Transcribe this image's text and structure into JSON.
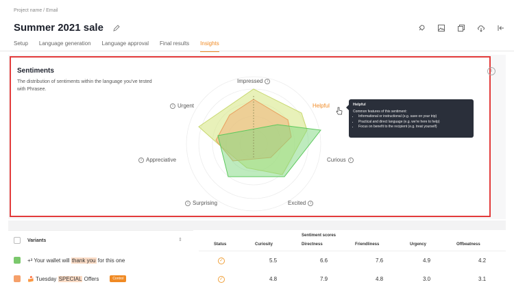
{
  "breadcrumb": "Project name / Email",
  "title": "Summer 2021 sale",
  "tabs": [
    {
      "label": "Setup",
      "active": false
    },
    {
      "label": "Language generation",
      "active": false
    },
    {
      "label": "Language approval",
      "active": false
    },
    {
      "label": "Final results",
      "active": false
    },
    {
      "label": "Insights",
      "active": true
    }
  ],
  "toolbar_icons": [
    "rocket-icon",
    "image-icon",
    "copy-icon",
    "download-icon",
    "collapse-icon"
  ],
  "sentiments": {
    "title": "Sentiments",
    "description": "The distribution of sentiments within the language you've tested with Phrasee.",
    "axes": [
      "Impressed",
      "Helpful",
      "Curious",
      "Excited",
      "Surprising",
      "Appreciative",
      "Urgent"
    ],
    "highlighted_axis": "Helpful",
    "tooltip": {
      "title": "Helpful",
      "subtitle": "Common features of this sentiment:",
      "items": [
        "Informational or instructional (e.g. save on your trip)",
        "Practical and direct language (e.g. we're here to help)",
        "Focus on benefit to the recipient (e.g. treat yourself)"
      ]
    },
    "colors": {
      "green": "#7ed87e",
      "orange": "#f0b37a",
      "yellow": "#d9e88a",
      "accent": "#f08a24"
    }
  },
  "variants": {
    "header": "Variants",
    "rows": [
      {
        "prefix": "+³ Your wallet will ",
        "highlight": "thank you",
        "suffix": " for this one",
        "badge": "",
        "checkbox": "green"
      },
      {
        "prefix": "🍰 Tuesday ",
        "highlight": "SPECIAL",
        "suffix": " Offers",
        "badge": "Control",
        "checkbox": "orange"
      }
    ]
  },
  "scores": {
    "group_header": "Sentiment scores",
    "columns": [
      "Status",
      "Curiosity",
      "Directness",
      "Friendliness",
      "Urgency",
      "Offbeatness"
    ],
    "rows": [
      [
        "5.5",
        "6.6",
        "7.6",
        "4.9",
        "4.2"
      ],
      [
        "4.8",
        "7.9",
        "4.8",
        "3.0",
        "3.1"
      ]
    ]
  }
}
